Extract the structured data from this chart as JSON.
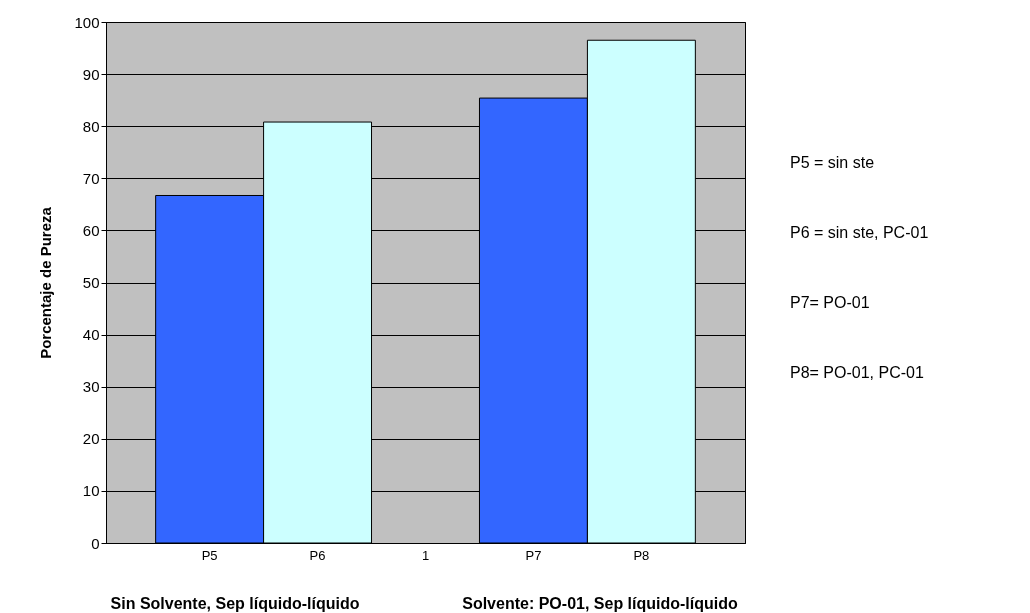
{
  "chart_data": {
    "type": "bar",
    "ylabel": "Porcentaje de  Pureza",
    "categories": [
      "P5",
      "P6",
      "1",
      "P7",
      "P8"
    ],
    "values": [
      66.7,
      80.8,
      null,
      85.4,
      96.5
    ],
    "colors": [
      "#3366ff",
      "#ccffff",
      null,
      "#3366ff",
      "#ccffff"
    ],
    "ylim": [
      0,
      100
    ],
    "yticks": [
      0,
      10,
      20,
      30,
      40,
      50,
      60,
      70,
      80,
      90,
      100
    ],
    "grid": "y",
    "annotations": [
      "Sin Solvente, Sep líquido-líquido",
      "Solvente: PO-01, Sep líquido-líquido",
      "P5 = sin ste",
      "P6 = sin ste, PC-01",
      "P7= PO-01",
      "P8= PO-01, PC-01"
    ]
  }
}
